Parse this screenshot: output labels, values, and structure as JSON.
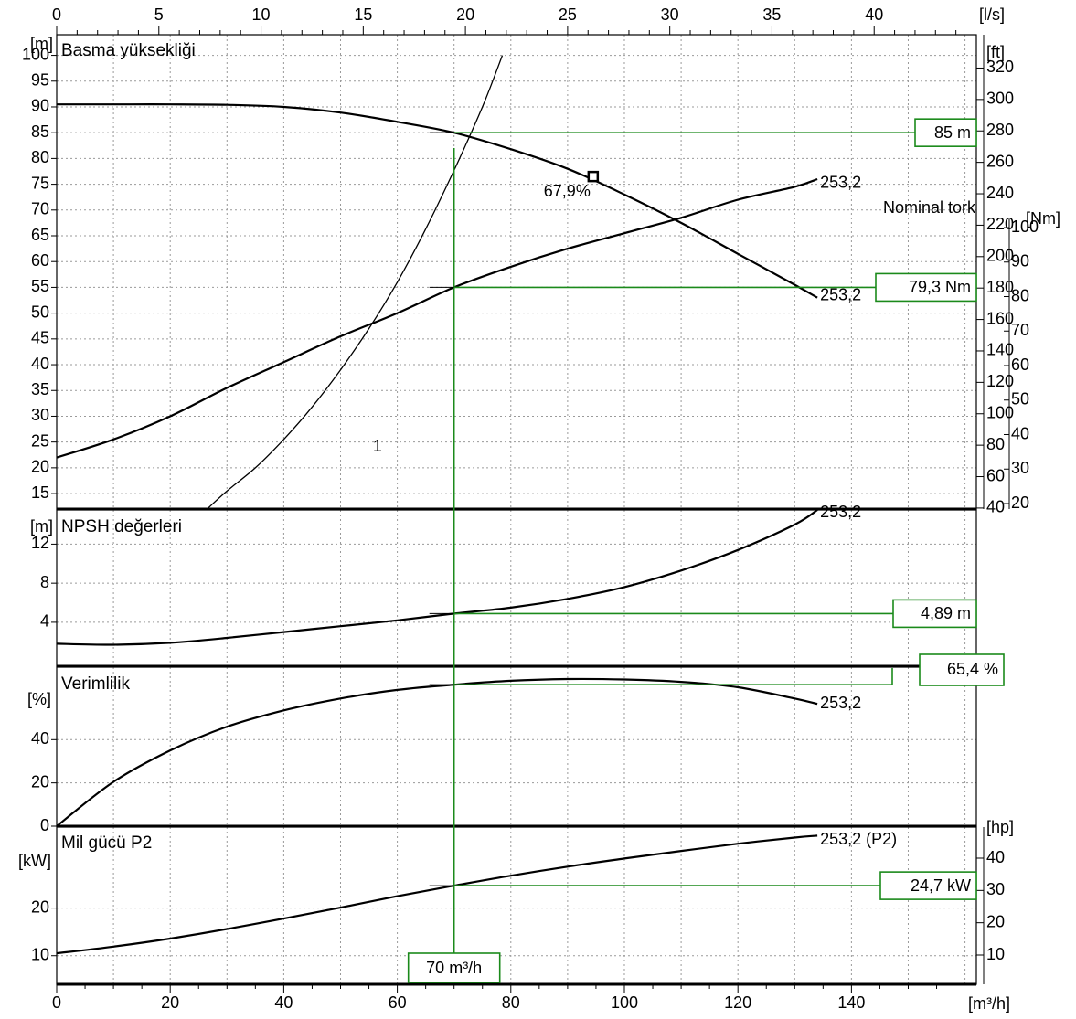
{
  "chart_data": {
    "type": "line",
    "x_bottom": {
      "unit": "[m³/h]",
      "ticks": [
        0,
        20,
        40,
        60,
        80,
        100,
        120,
        140
      ],
      "range": [
        0,
        162
      ]
    },
    "x_top": {
      "unit": "[l/s]",
      "ticks": [
        0,
        5,
        10,
        15,
        20,
        25,
        30,
        35,
        40
      ]
    },
    "duty_point": {
      "flow": 70,
      "label": "70 m³/h"
    },
    "panels": [
      {
        "id": "head",
        "title": "Basma yüksekliği",
        "left_unit": "[m]",
        "right_unit": "[ft]",
        "right2_unit": "[Nm]",
        "yrange": [
          12,
          104
        ],
        "yticks": [
          15,
          20,
          25,
          30,
          35,
          40,
          45,
          50,
          55,
          60,
          65,
          70,
          75,
          80,
          85,
          90,
          95,
          100
        ],
        "ft_ticks": [
          40,
          60,
          80,
          100,
          120,
          140,
          160,
          180,
          200,
          220,
          240,
          260,
          280,
          300,
          320
        ],
        "nm_ticks": [
          20,
          30,
          40,
          50,
          60,
          70,
          80,
          90,
          100
        ],
        "torque_label": "Nominal tork",
        "series": [
          {
            "name": "253,2",
            "role": "pump-head",
            "x": [
              0,
              10,
              20,
              30,
              40,
              50,
              60,
              70,
              80,
              90,
              100,
              110,
              120,
              130,
              134
            ],
            "y": [
              90.5,
              90.5,
              90.5,
              90.4,
              90,
              88.9,
              87.1,
              85,
              81.8,
              78,
              73,
              67.5,
              61.5,
              55.5,
              53
            ]
          },
          {
            "name": "253,2",
            "role": "torque",
            "x": [
              0,
              10,
              20,
              30,
              40,
              50,
              60,
              70,
              80,
              90,
              100,
              110,
              120,
              130,
              134
            ],
            "y": [
              22,
              25.5,
              30,
              35.5,
              40.5,
              45.5,
              50,
              55,
              59,
              62.5,
              65.5,
              68.5,
              72,
              74.5,
              76
            ]
          },
          {
            "name": "1",
            "role": "system-curve",
            "x": [
              26.5,
              30,
              35,
              40,
              45,
              50,
              55,
              60,
              65,
              70,
              75,
              78.5
            ],
            "y": [
              12,
              15.5,
              20,
              25.5,
              31.8,
              39,
              47,
              56,
              66.3,
              77.7,
              90,
              100
            ]
          }
        ],
        "annotations": {
          "efficiency_marker": {
            "x": 94.5,
            "y": 76.5,
            "label": "67,9%"
          }
        },
        "readout": "85 m",
        "readout_value": 85,
        "torque_readout": "79,3 Nm",
        "torque_readout_value": 79.3
      },
      {
        "id": "npsh",
        "title": "NPSH değerleri",
        "left_unit": "[m]",
        "yrange": [
          -0.5,
          15.5
        ],
        "yticks": [
          4,
          8,
          12
        ],
        "series": [
          {
            "name": "253,2",
            "x": [
              0,
              10,
              20,
              30,
              40,
              50,
              60,
              70,
              80,
              90,
              100,
              110,
              120,
              130,
              134
            ],
            "y": [
              1.8,
              1.7,
              1.9,
              2.4,
              3.0,
              3.6,
              4.2,
              4.89,
              5.5,
              6.4,
              7.6,
              9.3,
              11.4,
              14.0,
              15.5
            ]
          }
        ],
        "readout": "4,89 m",
        "readout_value": 4.89
      },
      {
        "id": "efficiency",
        "title": "Verimlilik",
        "left_unit": "[%]",
        "yrange": [
          0,
          73.5
        ],
        "yticks": [
          0,
          20,
          40
        ],
        "series": [
          {
            "name": "253,2",
            "x": [
              0,
              10,
              20,
              30,
              40,
              50,
              60,
              70,
              80,
              90,
              100,
              110,
              120,
              130,
              134
            ],
            "y": [
              0,
              20.5,
              35,
              46,
              53.5,
              59,
              63,
              65.4,
              67.2,
              68,
              67.8,
              66.7,
              64.2,
              59,
              56.5
            ]
          }
        ],
        "readout": "65,4 %",
        "readout_value": 65.4
      },
      {
        "id": "power",
        "title": "Mil gücü P2",
        "left_unit": "[kW]",
        "right_unit": "[hp]",
        "yrange": [
          4,
          37
        ],
        "yticks": [
          10,
          20
        ],
        "hp_ticks": [
          10,
          20,
          30,
          40
        ],
        "series": [
          {
            "name": "253,2 (P2)",
            "x": [
              0,
              10,
              20,
              30,
              40,
              50,
              60,
              70,
              80,
              90,
              100,
              110,
              120,
              130,
              134
            ],
            "y": [
              10.5,
              11.9,
              13.6,
              15.6,
              17.8,
              20.1,
              22.5,
              24.7,
              26.8,
              28.7,
              30.4,
              32,
              33.5,
              34.8,
              35.2
            ]
          }
        ],
        "readout": "24,7 kW",
        "readout_value": 24.7
      }
    ]
  }
}
